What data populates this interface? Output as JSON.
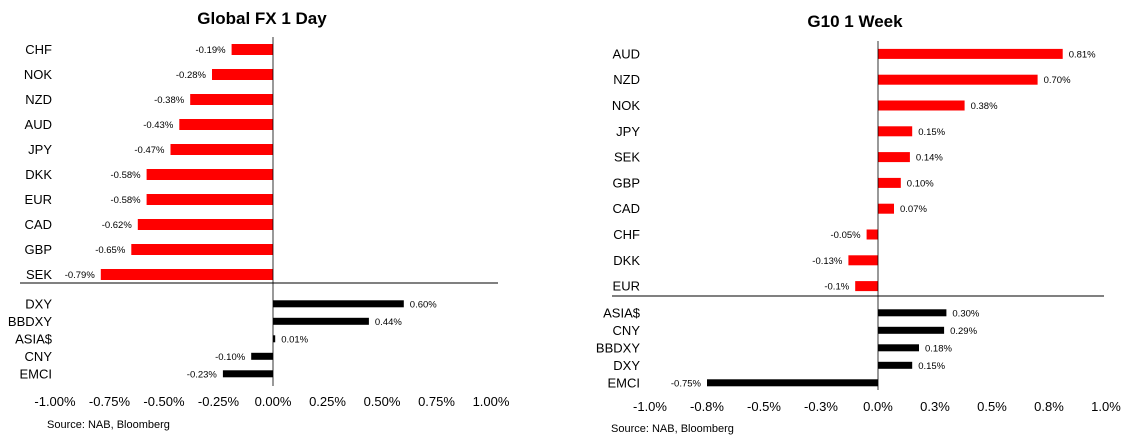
{
  "colors": {
    "top_bar": "#ff0000",
    "bottom_bar": "#000000",
    "axis": "#000000"
  },
  "chart_data": [
    {
      "type": "bar",
      "orientation": "horizontal",
      "title": "Global FX 1 Day",
      "source": "Source: NAB, Bloomberg",
      "xlim": [
        -1.0,
        1.0
      ],
      "x_ticks": [
        "-1.00%",
        "-0.75%",
        "-0.50%",
        "-0.25%",
        "0.00%",
        "0.25%",
        "0.50%",
        "0.75%",
        "1.00%"
      ],
      "groups": [
        {
          "color": "#ff0000",
          "categories": [
            "CHF",
            "NOK",
            "NZD",
            "AUD",
            "JPY",
            "DKK",
            "EUR",
            "CAD",
            "GBP",
            "SEK"
          ],
          "values": [
            -0.19,
            -0.28,
            -0.38,
            -0.43,
            -0.47,
            -0.58,
            -0.58,
            -0.62,
            -0.65,
            -0.79
          ],
          "labels": [
            "-0.19%",
            "-0.28%",
            "-0.38%",
            "-0.43%",
            "-0.47%",
            "-0.58%",
            "-0.58%",
            "-0.62%",
            "-0.65%",
            "-0.79%"
          ]
        },
        {
          "color": "#000000",
          "categories": [
            "DXY",
            "BBDXY",
            "ASIA$",
            "CNY",
            "EMCI"
          ],
          "values": [
            0.6,
            0.44,
            0.01,
            -0.1,
            -0.23
          ],
          "labels": [
            "0.60%",
            "0.44%",
            "0.01%",
            "-0.10%",
            "-0.23%"
          ]
        }
      ]
    },
    {
      "type": "bar",
      "orientation": "horizontal",
      "title": "G10 1 Week",
      "source": "Source: NAB, Bloomberg",
      "xlim": [
        -1.0,
        1.0
      ],
      "x_ticks": [
        "-1.0%",
        "-0.8%",
        "-0.5%",
        "-0.3%",
        "0.0%",
        "0.3%",
        "0.5%",
        "0.8%",
        "1.0%"
      ],
      "groups": [
        {
          "color": "#ff0000",
          "categories": [
            "AUD",
            "NZD",
            "NOK",
            "JPY",
            "SEK",
            "GBP",
            "CAD",
            "CHF",
            "DKK",
            "EUR"
          ],
          "values": [
            0.81,
            0.7,
            0.38,
            0.15,
            0.14,
            0.1,
            0.07,
            -0.05,
            -0.13,
            -0.1
          ],
          "labels": [
            "0.81%",
            "0.70%",
            "0.38%",
            "0.15%",
            "0.14%",
            "0.10%",
            "0.07%",
            "-0.05%",
            "-0.13%",
            "-0.1%"
          ]
        },
        {
          "color": "#000000",
          "categories": [
            "ASIA$",
            "CNY",
            "BBDXY",
            "DXY",
            "EMCI"
          ],
          "values": [
            0.3,
            0.29,
            0.18,
            0.15,
            -0.75
          ],
          "labels": [
            "0.30%",
            "0.29%",
            "0.18%",
            "0.15%",
            "-0.75%"
          ]
        }
      ]
    }
  ]
}
